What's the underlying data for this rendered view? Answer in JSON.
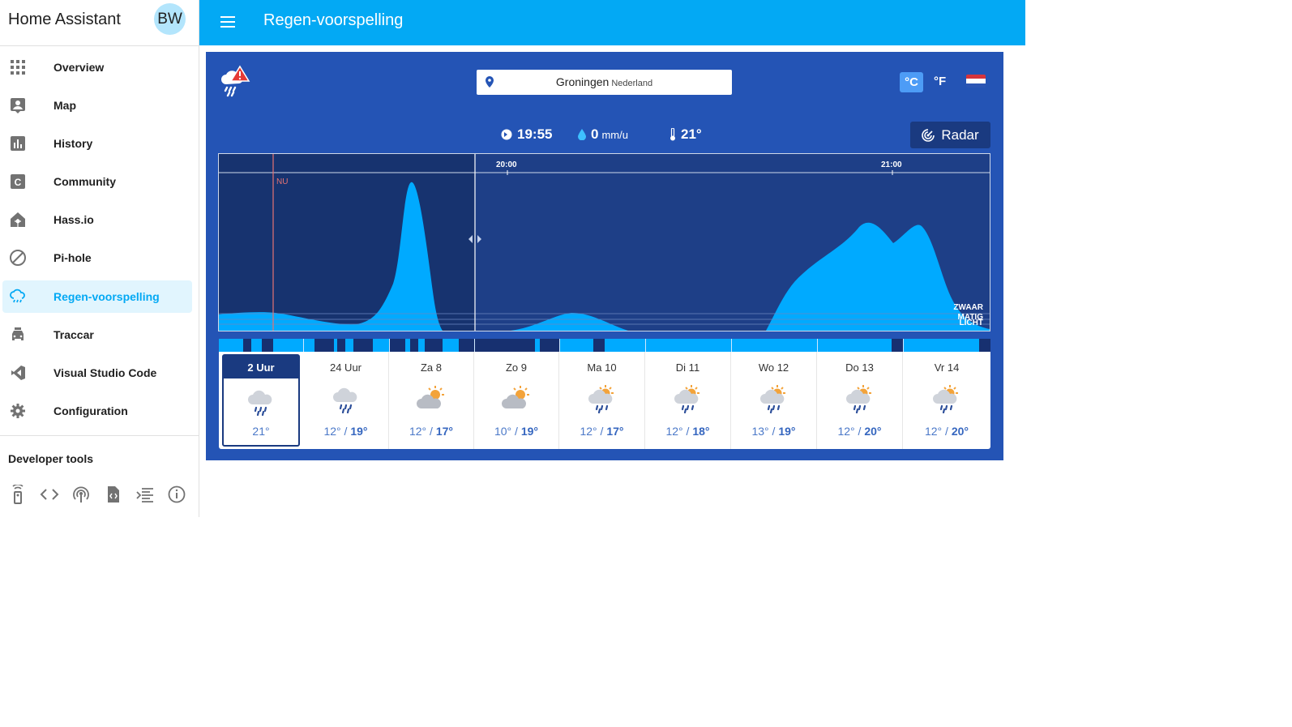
{
  "sidebar": {
    "title": "Home Assistant",
    "avatar": "BW",
    "items": [
      {
        "label": "Overview",
        "icon": "grid-icon"
      },
      {
        "label": "Map",
        "icon": "map-person-icon"
      },
      {
        "label": "History",
        "icon": "bar-chart-icon"
      },
      {
        "label": "Community",
        "icon": "community-c-icon"
      },
      {
        "label": "Hass.io",
        "icon": "hassio-icon"
      },
      {
        "label": "Pi-hole",
        "icon": "block-icon"
      },
      {
        "label": "Regen-voorspelling",
        "icon": "rain-cloud-icon",
        "active": true
      },
      {
        "label": "Traccar",
        "icon": "car-icon"
      },
      {
        "label": "Visual Studio Code",
        "icon": "vscode-icon"
      },
      {
        "label": "Configuration",
        "icon": "gear-icon"
      }
    ],
    "developer_title": "Developer tools",
    "developer_icons": [
      "remote-icon",
      "code-icon",
      "broadcast-icon",
      "template-icon",
      "logs-icon",
      "info-icon"
    ]
  },
  "topbar": {
    "title": "Regen-voorspelling"
  },
  "widget": {
    "location": {
      "city": "Groningen",
      "country": "Nederland"
    },
    "units": {
      "celsius": "°C",
      "fahrenheit": "°F"
    },
    "stats": {
      "time": "19:55",
      "rain_value": "0",
      "rain_unit": "mm/u",
      "temperature": "21°"
    },
    "radar_label": "Radar",
    "chart": {
      "now_label": "NU",
      "x_labels": [
        "20:00",
        "21:00"
      ],
      "intensity_labels": [
        "ZWAAR",
        "MATIG",
        "LICHT"
      ]
    },
    "forecast": [
      {
        "label": "2 Uur",
        "temp": "21°",
        "icon": "rain-cloud-icon",
        "selected": true
      },
      {
        "label": "24 Uur",
        "low": "12°",
        "high": "19°",
        "icon": "rain-cloud-icon"
      },
      {
        "label": "Za 8",
        "low": "12°",
        "high": "17°",
        "icon": "sun-cloud-icon"
      },
      {
        "label": "Zo 9",
        "low": "10°",
        "high": "19°",
        "icon": "sun-cloud-icon"
      },
      {
        "label": "Ma 10",
        "low": "12°",
        "high": "17°",
        "icon": "sun-rain-icon"
      },
      {
        "label": "Di 11",
        "low": "12°",
        "high": "18°",
        "icon": "sun-rain-icon"
      },
      {
        "label": "Wo 12",
        "low": "13°",
        "high": "19°",
        "icon": "sun-rain-icon"
      },
      {
        "label": "Do 13",
        "low": "12°",
        "high": "20°",
        "icon": "sun-rain-icon"
      },
      {
        "label": "Vr 14",
        "low": "12°",
        "high": "20°",
        "icon": "sun-rain-icon"
      }
    ]
  },
  "colors": {
    "accent": "#03a9f4",
    "widget_bg": "#2454b5",
    "chart_bg": "#1e3f87",
    "rain_fill": "#00aaff"
  }
}
